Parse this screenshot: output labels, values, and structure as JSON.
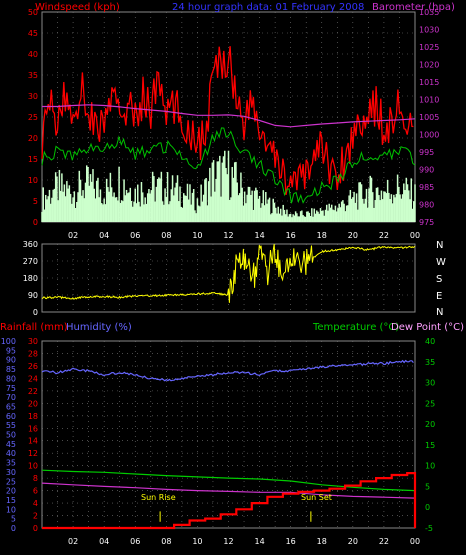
{
  "chart_data": [
    {
      "type": "line",
      "panel": "wind_baro",
      "title": "24 hour graph data: 01 February 2008",
      "ylabel_left": "Windspeed (kph)",
      "ylabel_right": "Barometer (hpa)",
      "ylim_left": [
        0,
        50
      ],
      "ylim_right": [
        975,
        1035
      ],
      "yticks_left": [
        "0",
        "5",
        "10",
        "15",
        "20",
        "25",
        "30",
        "35",
        "40",
        "45",
        "50"
      ],
      "yticks_right": [
        "975",
        "980",
        "985",
        "990",
        "995",
        "1000",
        "1005",
        "1010",
        "1015",
        "1020",
        "1025",
        "1030",
        "1035"
      ],
      "x_ticks": [
        "02",
        "04",
        "06",
        "08",
        "10",
        "12",
        "14",
        "16",
        "18",
        "20",
        "22",
        "00"
      ],
      "xlim_hours": [
        0,
        24
      ],
      "grid": true,
      "colors": {
        "gust": "#ff0000",
        "avg": "#00c000",
        "wind": "#ccffcc",
        "baro": "#cc33cc"
      },
      "series": [
        {
          "name": "Barometer",
          "axis": "right",
          "x": [
            0,
            1,
            2,
            3,
            4,
            5,
            6,
            7,
            8,
            9,
            10,
            11,
            12,
            13,
            14,
            15,
            16,
            17,
            18,
            19,
            20,
            21,
            22,
            23,
            24
          ],
          "values": [
            1008,
            1008,
            1008.3,
            1008.5,
            1008.3,
            1007.9,
            1007.4,
            1007,
            1006.6,
            1006,
            1005.5,
            1005.5,
            1005.6,
            1005.2,
            1004,
            1002.6,
            1002.2,
            1002.6,
            1003,
            1003.3,
            1003.6,
            1003.8,
            1004,
            1004.2,
            1004.5
          ]
        },
        {
          "name": "Gust",
          "axis": "left",
          "x": [
            0,
            0.5,
            1,
            1.5,
            2,
            2.5,
            3,
            3.5,
            4,
            4.5,
            5,
            5.5,
            6,
            6.5,
            7,
            7.5,
            8,
            8.5,
            9,
            9.5,
            10,
            10.5,
            11,
            11.5,
            12,
            12.5,
            13,
            13.5,
            14,
            14.5,
            15,
            15.5,
            16,
            16.5,
            17,
            17.5,
            18,
            18.5,
            19,
            19.5,
            20,
            20.5,
            21,
            21.5,
            22,
            22.5,
            23,
            23.5,
            24
          ],
          "values": [
            20,
            28,
            24,
            30,
            25,
            32,
            27,
            22,
            24,
            29,
            26,
            28,
            24,
            30,
            27,
            34,
            25,
            28,
            24,
            22,
            20,
            19,
            35,
            38,
            40,
            30,
            24,
            28,
            22,
            18,
            14,
            12,
            10,
            8,
            12,
            16,
            18,
            14,
            10,
            16,
            20,
            26,
            24,
            28,
            22,
            24,
            28,
            22,
            20
          ]
        },
        {
          "name": "Average",
          "axis": "left",
          "x": [
            0,
            1,
            2,
            3,
            4,
            5,
            6,
            7,
            8,
            9,
            10,
            11,
            12,
            13,
            14,
            15,
            16,
            17,
            18,
            19,
            20,
            21,
            22,
            23,
            24
          ],
          "values": [
            15,
            17,
            16,
            18,
            17,
            19,
            16,
            17,
            18,
            16,
            12,
            20,
            22,
            16,
            14,
            10,
            6,
            5,
            8,
            10,
            14,
            16,
            16,
            17,
            15
          ]
        },
        {
          "name": "Wind",
          "axis": "left",
          "x": [
            0,
            1,
            2,
            3,
            4,
            5,
            6,
            7,
            8,
            9,
            10,
            11,
            12,
            13,
            14,
            15,
            16,
            17,
            18,
            19,
            20,
            21,
            22,
            23,
            24
          ],
          "values": [
            6,
            9,
            8,
            10,
            8,
            11,
            8,
            9,
            9,
            8,
            5,
            12,
            13,
            8,
            6,
            4,
            2,
            2,
            3,
            4,
            6,
            8,
            8,
            9,
            7
          ]
        }
      ]
    },
    {
      "type": "scatter",
      "panel": "direction",
      "right_labels": [
        "N",
        "W",
        "S",
        "E",
        "N"
      ],
      "ylim": [
        0,
        360
      ],
      "yticks": [
        "0",
        "90",
        "180",
        "270",
        "360"
      ],
      "color": "#ffff00",
      "series": [
        {
          "name": "Direction",
          "x": [
            0,
            1,
            2,
            3,
            4,
            5,
            6,
            7,
            8,
            9,
            10,
            11,
            12,
            12.5,
            13,
            13.5,
            14,
            14.5,
            15,
            15.5,
            16,
            16.5,
            17,
            17.5,
            18,
            19,
            20,
            21,
            22,
            23,
            24
          ],
          "values": [
            75,
            78,
            72,
            80,
            82,
            78,
            84,
            86,
            88,
            92,
            96,
            100,
            90,
            240,
            300,
            150,
            310,
            200,
            330,
            180,
            320,
            290,
            250,
            290,
            320,
            330,
            340,
            330,
            345,
            340,
            345
          ]
        }
      ]
    },
    {
      "type": "line",
      "panel": "temp_hum_rain",
      "ylabel_rainfall": "Rainfall (mm)",
      "ylabel_humidity": "Humidity (%)",
      "ylabel_temperature": "Temperature (°C)",
      "ylabel_dewpoint": "Dew Point (°C)",
      "ylim_rain": [
        0,
        30
      ],
      "ylim_humidity": [
        0,
        100
      ],
      "ylim_temp": [
        -5,
        40
      ],
      "yticks_rain": [
        "0",
        "2",
        "4",
        "6",
        "8",
        "10",
        "12",
        "14",
        "16",
        "18",
        "20",
        "22",
        "24",
        "26",
        "28",
        "30"
      ],
      "yticks_humidity": [
        "0",
        "5",
        "10",
        "15",
        "20",
        "25",
        "30",
        "35",
        "40",
        "45",
        "50",
        "55",
        "60",
        "65",
        "70",
        "75",
        "80",
        "85",
        "90",
        "95",
        "100"
      ],
      "yticks_temp": [
        "-5",
        "0",
        "5",
        "10",
        "15",
        "20",
        "25",
        "30",
        "35",
        "40"
      ],
      "annotations": [
        {
          "text": "Sun Rise",
          "hour": 7.6
        },
        {
          "text": "Sun Set",
          "hour": 17.3
        }
      ],
      "series": [
        {
          "name": "Humidity",
          "axis": "humidity",
          "color": "#6666ff",
          "x": [
            0,
            1,
            2,
            3,
            4,
            5,
            6,
            7,
            8,
            9,
            10,
            11,
            12,
            13,
            14,
            15,
            16,
            17,
            18,
            19,
            20,
            21,
            22,
            23,
            24
          ],
          "values": [
            84,
            83,
            85,
            84,
            82,
            83,
            82,
            80,
            79,
            80,
            81,
            82,
            83,
            83,
            82,
            84,
            84,
            85,
            86,
            87,
            87,
            88,
            88,
            89,
            89
          ]
        },
        {
          "name": "Temperature",
          "axis": "temp",
          "color": "#00cc00",
          "x": [
            0,
            2,
            4,
            6,
            8,
            10,
            12,
            14,
            16,
            18,
            20,
            22,
            24
          ],
          "values": [
            8.9,
            8.6,
            8.4,
            8,
            7.6,
            7.3,
            7,
            6.8,
            6.3,
            5.4,
            4.8,
            4.3,
            4
          ]
        },
        {
          "name": "Dew Point",
          "axis": "temp",
          "color": "#cc33cc",
          "x": [
            0,
            2,
            4,
            6,
            8,
            10,
            12,
            14,
            16,
            18,
            20,
            22,
            24
          ],
          "values": [
            5.8,
            5.4,
            5.0,
            4.7,
            4.3,
            4.0,
            3.8,
            3.6,
            3.6,
            3.0,
            2.6,
            2.4,
            2.2
          ]
        },
        {
          "name": "Rainfall",
          "axis": "rain",
          "color": "#ff0000",
          "x": [
            0,
            7.6,
            8.5,
            9.5,
            10.5,
            11.5,
            12.5,
            13.5,
            14.5,
            15.5,
            16.5,
            17.5,
            18.5,
            19.5,
            20.5,
            21.5,
            22.5,
            23.5,
            23.9,
            24
          ],
          "values": [
            0,
            0,
            0.5,
            1.2,
            1.5,
            2.2,
            3.0,
            4.0,
            5.0,
            5.5,
            5.8,
            6.0,
            6.3,
            6.8,
            7.5,
            8.0,
            8.5,
            8.8,
            8.8,
            0
          ]
        }
      ]
    }
  ],
  "header": {
    "windspeed": "Windspeed (kph)",
    "title": "24 hour graph data: 01 February 2008",
    "barometer": "Barometer (hpa)"
  },
  "footer": {
    "rainfall": "Rainfall (mm)",
    "humidity": "Humidity (%)",
    "temperature": "Temperature (°C)",
    "dewpoint": "Dew Point (°C)",
    "sunrise": "Sun Rise",
    "sunset": "Sun Set"
  },
  "compass": [
    "N",
    "W",
    "S",
    "E",
    "N"
  ]
}
